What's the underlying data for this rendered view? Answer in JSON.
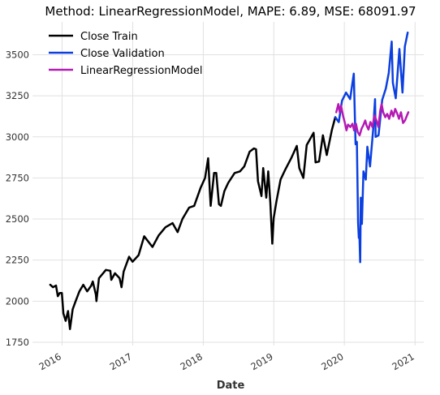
{
  "chart_data": {
    "type": "line",
    "title": "Method: LinearRegressionModel, MAPE: 6.89, MSE: 68091.97",
    "xlabel": "Date",
    "ylabel": "",
    "xlim": [
      "2015-08-01",
      "2021-02-15"
    ],
    "ylim": [
      1730,
      3700
    ],
    "x_ticks": [
      "2016-01-01",
      "2017-01-01",
      "2018-01-01",
      "2019-01-01",
      "2020-01-01",
      "2021-01-01"
    ],
    "x_tick_labels": [
      "2016",
      "2017",
      "2018",
      "2019",
      "2020",
      "2021"
    ],
    "y_ticks": [
      1750,
      2000,
      2250,
      2500,
      2750,
      3000,
      3250,
      3500
    ],
    "grid": true,
    "legend_position": "top-left",
    "series": [
      {
        "name": "Close Train",
        "color": "#000000",
        "points": [
          [
            "2015-11-01",
            2100
          ],
          [
            "2015-11-15",
            2085
          ],
          [
            "2015-12-01",
            2095
          ],
          [
            "2015-12-10",
            2030
          ],
          [
            "2015-12-20",
            2050
          ],
          [
            "2015-12-31",
            2050
          ],
          [
            "2016-01-08",
            1925
          ],
          [
            "2016-01-20",
            1880
          ],
          [
            "2016-02-01",
            1940
          ],
          [
            "2016-02-11",
            1830
          ],
          [
            "2016-02-25",
            1950
          ],
          [
            "2016-03-10",
            1995
          ],
          [
            "2016-03-31",
            2060
          ],
          [
            "2016-04-20",
            2100
          ],
          [
            "2016-05-10",
            2060
          ],
          [
            "2016-05-31",
            2095
          ],
          [
            "2016-06-08",
            2120
          ],
          [
            "2016-06-24",
            2040
          ],
          [
            "2016-06-27",
            2000
          ],
          [
            "2016-07-10",
            2140
          ],
          [
            "2016-08-15",
            2190
          ],
          [
            "2016-09-07",
            2185
          ],
          [
            "2016-09-12",
            2130
          ],
          [
            "2016-10-01",
            2170
          ],
          [
            "2016-10-25",
            2140
          ],
          [
            "2016-11-04",
            2085
          ],
          [
            "2016-11-15",
            2180
          ],
          [
            "2016-12-13",
            2270
          ],
          [
            "2016-12-31",
            2240
          ],
          [
            "2017-01-31",
            2280
          ],
          [
            "2017-03-01",
            2395
          ],
          [
            "2017-04-13",
            2330
          ],
          [
            "2017-05-15",
            2400
          ],
          [
            "2017-06-19",
            2450
          ],
          [
            "2017-07-26",
            2475
          ],
          [
            "2017-08-21",
            2420
          ],
          [
            "2017-09-15",
            2500
          ],
          [
            "2017-10-20",
            2570
          ],
          [
            "2017-11-15",
            2580
          ],
          [
            "2017-12-18",
            2690
          ],
          [
            "2018-01-10",
            2750
          ],
          [
            "2018-01-26",
            2870
          ],
          [
            "2018-02-05",
            2650
          ],
          [
            "2018-02-08",
            2580
          ],
          [
            "2018-02-26",
            2780
          ],
          [
            "2018-03-09",
            2780
          ],
          [
            "2018-03-23",
            2590
          ],
          [
            "2018-04-02",
            2580
          ],
          [
            "2018-04-20",
            2670
          ],
          [
            "2018-05-10",
            2720
          ],
          [
            "2018-06-12",
            2780
          ],
          [
            "2018-07-10",
            2790
          ],
          [
            "2018-08-01",
            2820
          ],
          [
            "2018-08-29",
            2910
          ],
          [
            "2018-09-20",
            2930
          ],
          [
            "2018-10-01",
            2925
          ],
          [
            "2018-10-11",
            2730
          ],
          [
            "2018-10-29",
            2640
          ],
          [
            "2018-11-07",
            2810
          ],
          [
            "2018-11-23",
            2630
          ],
          [
            "2018-12-03",
            2790
          ],
          [
            "2018-12-14",
            2600
          ],
          [
            "2018-12-24",
            2350
          ],
          [
            "2018-12-31",
            2505
          ],
          [
            "2019-01-15",
            2610
          ],
          [
            "2019-02-05",
            2740
          ],
          [
            "2019-03-01",
            2800
          ],
          [
            "2019-04-01",
            2870
          ],
          [
            "2019-04-30",
            2945
          ],
          [
            "2019-05-13",
            2810
          ],
          [
            "2019-06-03",
            2750
          ],
          [
            "2019-06-20",
            2950
          ],
          [
            "2019-07-26",
            3025
          ],
          [
            "2019-08-05",
            2845
          ],
          [
            "2019-08-23",
            2850
          ],
          [
            "2019-09-12",
            3010
          ],
          [
            "2019-10-02",
            2890
          ],
          [
            "2019-10-28",
            3040
          ],
          [
            "2019-11-15",
            3120
          ]
        ]
      },
      {
        "name": "Close Validation",
        "color": "#0b3fe0",
        "points": [
          [
            "2019-11-15",
            3120
          ],
          [
            "2019-12-03",
            3090
          ],
          [
            "2019-12-20",
            3220
          ],
          [
            "2020-01-10",
            3270
          ],
          [
            "2020-01-31",
            3230
          ],
          [
            "2020-02-19",
            3385
          ],
          [
            "2020-02-28",
            2955
          ],
          [
            "2020-03-06",
            2970
          ],
          [
            "2020-03-12",
            2480
          ],
          [
            "2020-03-16",
            2385
          ],
          [
            "2020-03-19",
            2410
          ],
          [
            "2020-03-23",
            2237
          ],
          [
            "2020-03-26",
            2630
          ],
          [
            "2020-04-01",
            2470
          ],
          [
            "2020-04-09",
            2790
          ],
          [
            "2020-04-21",
            2740
          ],
          [
            "2020-04-29",
            2940
          ],
          [
            "2020-05-13",
            2820
          ],
          [
            "2020-05-29",
            3040
          ],
          [
            "2020-06-08",
            3230
          ],
          [
            "2020-06-11",
            3000
          ],
          [
            "2020-06-26",
            3010
          ],
          [
            "2020-07-15",
            3225
          ],
          [
            "2020-08-03",
            3295
          ],
          [
            "2020-08-18",
            3390
          ],
          [
            "2020-09-02",
            3580
          ],
          [
            "2020-09-08",
            3330
          ],
          [
            "2020-09-23",
            3235
          ],
          [
            "2020-10-12",
            3535
          ],
          [
            "2020-10-28",
            3270
          ],
          [
            "2020-11-09",
            3550
          ],
          [
            "2020-11-24",
            3635
          ]
        ]
      },
      {
        "name": "LinearRegressionModel",
        "color": "#b41ab4",
        "points": [
          [
            "2019-11-20",
            3150
          ],
          [
            "2019-12-01",
            3200
          ],
          [
            "2019-12-08",
            3150
          ],
          [
            "2019-12-15",
            3190
          ],
          [
            "2019-12-25",
            3130
          ],
          [
            "2020-01-05",
            3080
          ],
          [
            "2020-01-12",
            3040
          ],
          [
            "2020-01-20",
            3075
          ],
          [
            "2020-02-01",
            3060
          ],
          [
            "2020-02-12",
            3080
          ],
          [
            "2020-02-20",
            3040
          ],
          [
            "2020-03-01",
            3080
          ],
          [
            "2020-03-10",
            3030
          ],
          [
            "2020-03-20",
            3010
          ],
          [
            "2020-03-30",
            3050
          ],
          [
            "2020-04-08",
            3070
          ],
          [
            "2020-04-18",
            3100
          ],
          [
            "2020-04-25",
            3070
          ],
          [
            "2020-05-05",
            3045
          ],
          [
            "2020-05-15",
            3090
          ],
          [
            "2020-05-25",
            3060
          ],
          [
            "2020-06-05",
            3130
          ],
          [
            "2020-06-15",
            3100
          ],
          [
            "2020-06-25",
            3060
          ],
          [
            "2020-07-05",
            3160
          ],
          [
            "2020-07-12",
            3200
          ],
          [
            "2020-07-20",
            3150
          ],
          [
            "2020-07-31",
            3120
          ],
          [
            "2020-08-10",
            3140
          ],
          [
            "2020-08-20",
            3110
          ],
          [
            "2020-09-01",
            3160
          ],
          [
            "2020-09-10",
            3125
          ],
          [
            "2020-09-20",
            3170
          ],
          [
            "2020-10-01",
            3140
          ],
          [
            "2020-10-10",
            3110
          ],
          [
            "2020-10-20",
            3150
          ],
          [
            "2020-10-31",
            3085
          ],
          [
            "2020-11-10",
            3100
          ],
          [
            "2020-11-20",
            3130
          ],
          [
            "2020-11-27",
            3150
          ]
        ]
      }
    ]
  }
}
